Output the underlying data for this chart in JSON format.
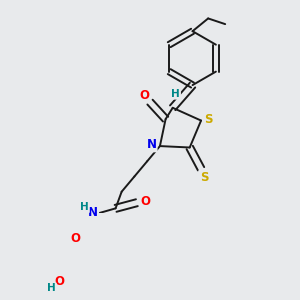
{
  "bg_color": "#e8eaec",
  "bond_color": "#1a1a1a",
  "atom_colors": {
    "O": "#ff0000",
    "N": "#0000ee",
    "S": "#ccaa00",
    "H": "#008888",
    "C": "#1a1a1a"
  },
  "font_size": 8.5,
  "lw": 1.4,
  "dbo": 0.013
}
